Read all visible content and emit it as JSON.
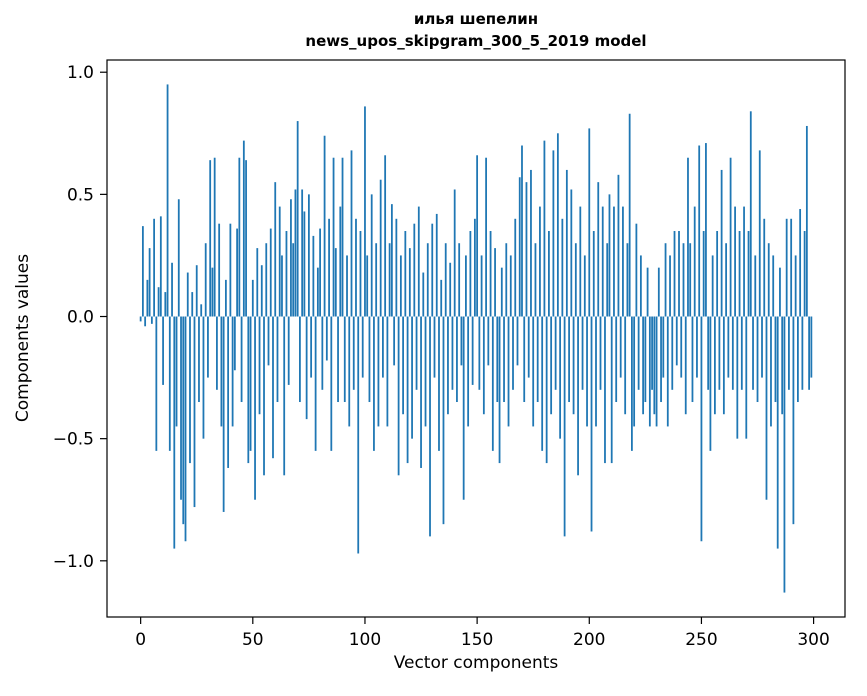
{
  "figure": {
    "title_line1": "илья шепелин",
    "title_line2": "news_upos_skipgram_300_5_2019 model",
    "xlabel": "Vector components",
    "ylabel": "Components values"
  },
  "chart_data": {
    "type": "bar",
    "title": "илья шепелин\nnews_upos_skipgram_300_5_2019 model",
    "xlabel": "Vector components",
    "ylabel": "Components values",
    "x_start": 0,
    "xlim": [
      -15,
      314
    ],
    "ylim": [
      -1.23,
      1.05
    ],
    "xticks": [
      0,
      50,
      100,
      150,
      200,
      250,
      300
    ],
    "xtick_labels": [
      "0",
      "50",
      "100",
      "150",
      "200",
      "250",
      "300"
    ],
    "yticks": [
      1.0,
      0.5,
      0.0,
      -0.5,
      -1.0
    ],
    "ytick_labels": [
      "1.0",
      "0.5",
      "0.0",
      "−0.5",
      "−1.0"
    ],
    "grid": false,
    "legend": "none",
    "bar_color": "#1f77b4",
    "bar_width_data_units": 0.8,
    "values": [
      -0.02,
      0.37,
      -0.04,
      0.15,
      0.28,
      -0.03,
      0.4,
      -0.55,
      0.12,
      0.41,
      -0.28,
      0.1,
      0.95,
      -0.55,
      0.22,
      -0.95,
      -0.45,
      0.48,
      -0.75,
      -0.85,
      -0.92,
      0.18,
      -0.6,
      0.1,
      -0.78,
      0.21,
      -0.35,
      0.05,
      -0.5,
      0.3,
      -0.25,
      0.64,
      0.2,
      0.65,
      -0.3,
      0.38,
      -0.45,
      -0.8,
      0.15,
      -0.62,
      0.38,
      -0.45,
      -0.22,
      0.36,
      0.65,
      -0.35,
      0.72,
      0.64,
      -0.6,
      -0.55,
      0.15,
      -0.75,
      0.28,
      -0.4,
      0.21,
      -0.65,
      0.3,
      -0.2,
      0.36,
      -0.58,
      0.55,
      -0.35,
      0.45,
      0.25,
      -0.65,
      0.35,
      -0.28,
      0.48,
      0.3,
      0.52,
      0.8,
      -0.35,
      0.52,
      0.43,
      -0.42,
      0.5,
      -0.25,
      0.33,
      -0.55,
      0.2,
      0.36,
      -0.3,
      0.74,
      -0.18,
      0.4,
      -0.55,
      0.65,
      0.28,
      -0.35,
      0.45,
      0.65,
      -0.35,
      0.25,
      -0.45,
      0.68,
      -0.3,
      0.4,
      -0.97,
      0.35,
      -0.25,
      0.86,
      0.25,
      -0.35,
      0.5,
      -0.55,
      0.3,
      -0.45,
      0.56,
      -0.25,
      0.66,
      -0.45,
      0.3,
      0.46,
      -0.2,
      0.4,
      -0.65,
      0.25,
      -0.4,
      0.35,
      -0.6,
      0.28,
      -0.5,
      0.38,
      -0.3,
      0.45,
      -0.62,
      0.18,
      -0.45,
      0.3,
      -0.9,
      0.38,
      -0.25,
      0.42,
      -0.55,
      0.15,
      -0.85,
      0.3,
      -0.4,
      0.22,
      -0.3,
      0.52,
      -0.35,
      0.3,
      -0.2,
      -0.75,
      0.25,
      -0.45,
      0.35,
      -0.28,
      0.4,
      0.66,
      -0.3,
      0.25,
      -0.4,
      0.65,
      -0.2,
      0.35,
      -0.55,
      0.28,
      -0.35,
      -0.6,
      0.2,
      -0.35,
      0.3,
      -0.45,
      0.25,
      -0.3,
      0.4,
      -0.2,
      0.57,
      0.7,
      -0.35,
      0.55,
      -0.25,
      0.6,
      -0.45,
      0.3,
      -0.35,
      0.45,
      -0.55,
      0.72,
      -0.6,
      0.35,
      -0.4,
      0.68,
      -0.3,
      0.75,
      -0.5,
      0.4,
      -0.9,
      0.6,
      -0.35,
      0.52,
      -0.4,
      0.3,
      -0.65,
      0.45,
      -0.3,
      0.25,
      -0.45,
      0.77,
      -0.88,
      0.35,
      -0.45,
      0.55,
      -0.3,
      0.45,
      -0.6,
      0.3,
      0.5,
      -0.6,
      0.45,
      -0.35,
      0.58,
      -0.25,
      0.45,
      -0.4,
      0.3,
      0.83,
      -0.55,
      -0.45,
      0.38,
      -0.3,
      0.25,
      -0.4,
      -0.35,
      0.2,
      -0.45,
      -0.3,
      -0.4,
      -0.45,
      0.2,
      -0.35,
      -0.25,
      0.3,
      -0.45,
      0.25,
      -0.3,
      0.35,
      -0.2,
      0.35,
      -0.25,
      0.3,
      -0.4,
      0.65,
      0.3,
      -0.35,
      0.45,
      -0.25,
      0.7,
      -0.92,
      0.35,
      0.71,
      -0.3,
      -0.55,
      0.25,
      -0.4,
      0.35,
      -0.3,
      0.6,
      -0.4,
      0.3,
      -0.25,
      0.65,
      -0.3,
      0.45,
      -0.5,
      0.35,
      -0.3,
      0.45,
      -0.5,
      0.35,
      0.84,
      -0.3,
      0.25,
      -0.35,
      0.68,
      -0.25,
      0.4,
      -0.75,
      0.3,
      -0.45,
      0.25,
      -0.35,
      -0.95,
      0.2,
      -0.4,
      -1.13,
      0.4,
      -0.3,
      0.4,
      -0.85,
      0.25,
      -0.35,
      0.44,
      -0.3,
      0.35,
      0.78,
      -0.3,
      -0.25
    ]
  }
}
